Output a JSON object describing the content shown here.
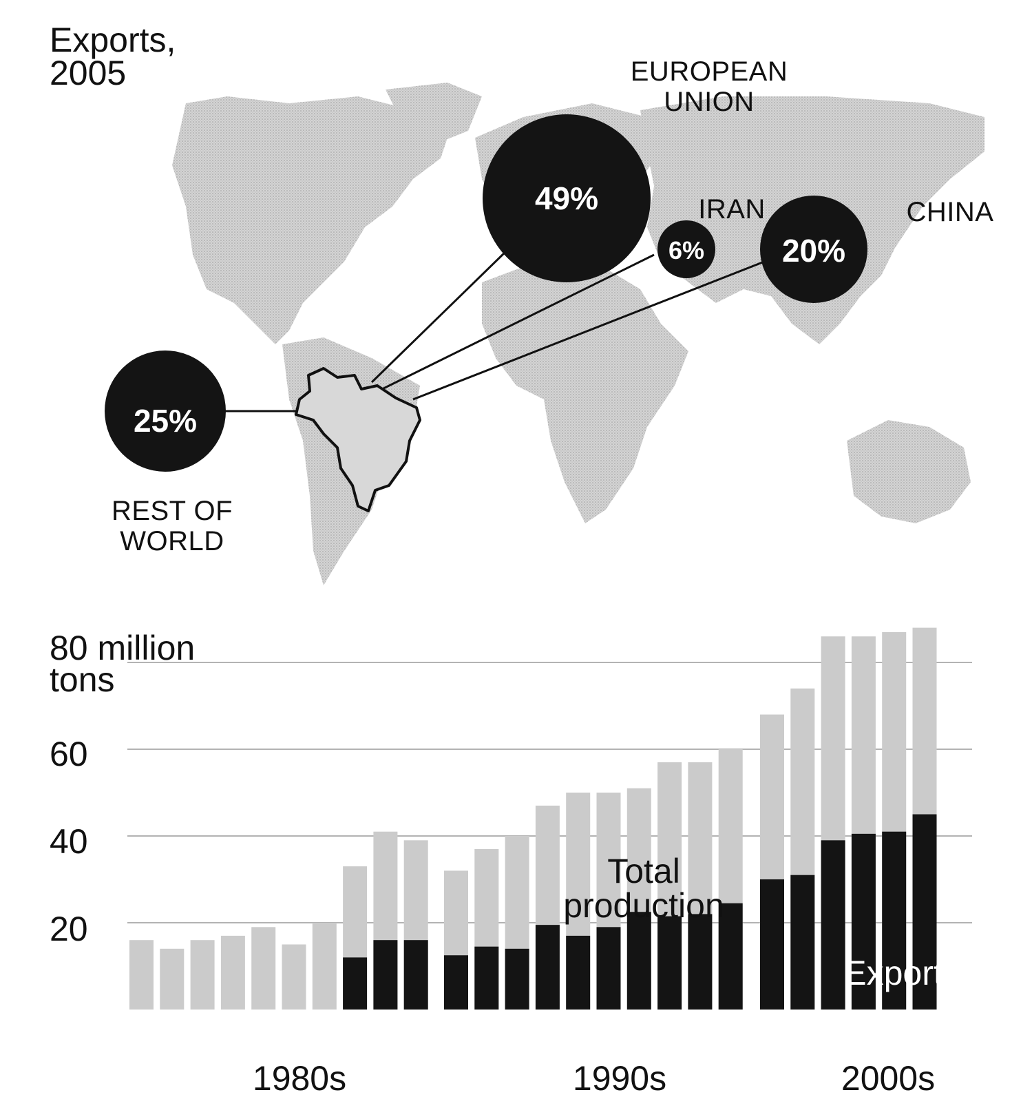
{
  "map": {
    "title_line1": "Exports,",
    "title_line2": "2005",
    "destinations": [
      {
        "name_line1": "EUROPEAN",
        "name_line2": "UNION",
        "share": "49%",
        "value": 49
      },
      {
        "name_line1": "IRAN",
        "name_line2": "",
        "share": "6%",
        "value": 6
      },
      {
        "name_line1": "CHINA",
        "name_line2": "",
        "share": "20%",
        "value": 20
      },
      {
        "name_line1": "REST OF",
        "name_line2": "WORLD",
        "share": "25%",
        "value": 25
      }
    ],
    "colors": {
      "land": "#cfcfcf",
      "origin": "#d8d8d8",
      "bubble": "#141414"
    }
  },
  "chart_data": {
    "type": "bar",
    "ylabel_line1": "80 million",
    "ylabel_line2": "tons",
    "yticks": [
      "20",
      "40",
      "60"
    ],
    "ylim": [
      0,
      80
    ],
    "decades": [
      "1980s",
      "1990s",
      "2000s"
    ],
    "series": [
      {
        "name": "Total production",
        "values": [
          16,
          14,
          16,
          17,
          19,
          15,
          20,
          33,
          41,
          39,
          32,
          37,
          40,
          47,
          50,
          50,
          51,
          57,
          57,
          60,
          68,
          74,
          86,
          86,
          87,
          88
        ]
      },
      {
        "name": "Exports",
        "values": [
          null,
          null,
          null,
          null,
          null,
          null,
          null,
          12,
          16,
          16,
          12.5,
          14.5,
          14,
          19.5,
          17,
          19,
          22.5,
          21.5,
          22,
          24.5,
          30,
          31,
          39,
          40.5,
          41,
          45
        ]
      }
    ],
    "grid": true,
    "colors": {
      "production": "#cbcbcb",
      "exports": "#141414",
      "grid": "#9a9a9a"
    }
  }
}
